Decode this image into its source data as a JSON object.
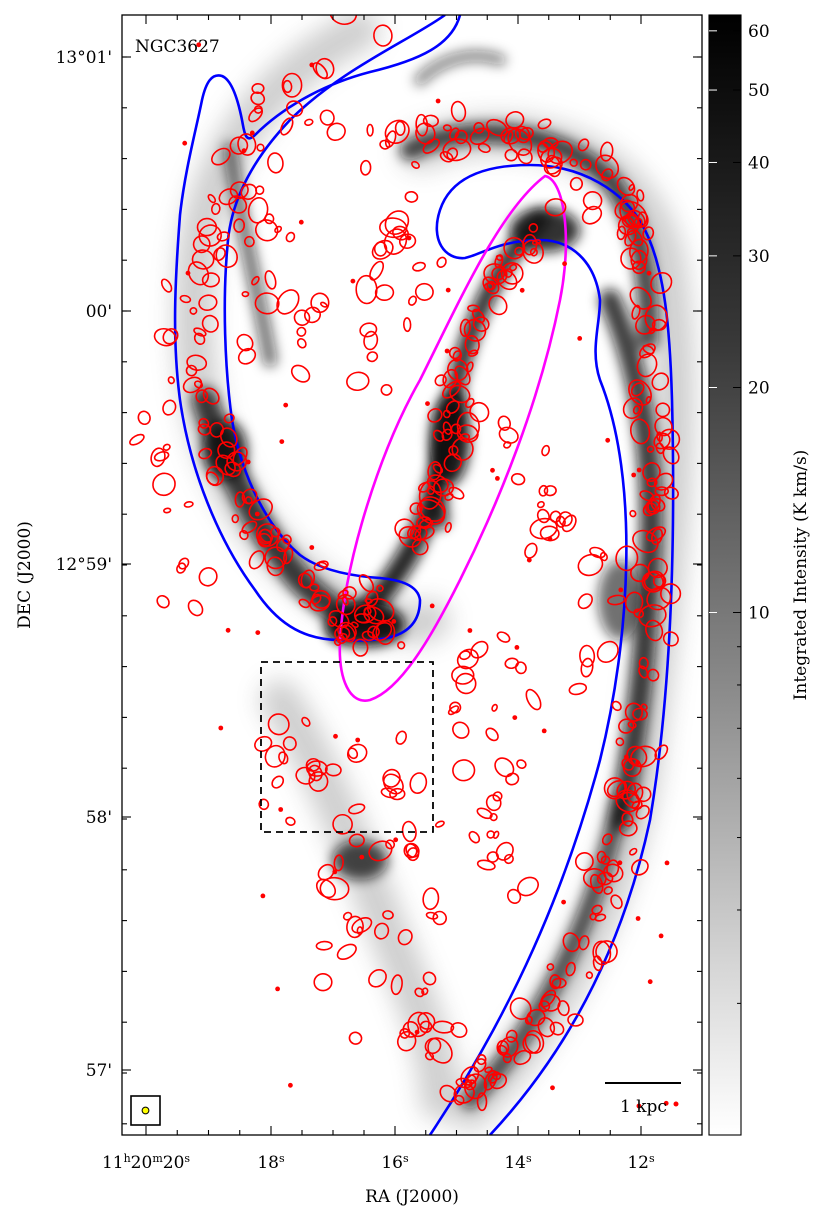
{
  "chart_data": {
    "type": "heatmap",
    "title": "",
    "galaxy_label": "NGC3627",
    "xlabel": "RA (J2000)",
    "ylabel": "DEC (J2000)",
    "colorbar": {
      "label": "Integrated Intensity (K km/s)",
      "scale": "log",
      "colormap": "greys",
      "ticks": [
        "60",
        "50",
        "40",
        "30",
        "20",
        "10"
      ],
      "tick_values": [
        60,
        50,
        40,
        30,
        20,
        10
      ],
      "range": [
        2,
        63
      ]
    },
    "x_ticks": [
      {
        "label": "11h20m20s",
        "h": "11",
        "m": "20",
        "s": "20"
      },
      {
        "label": "18s",
        "num": "18",
        "unit": "s"
      },
      {
        "label": "16s",
        "num": "16",
        "unit": "s"
      },
      {
        "label": "14s",
        "num": "14",
        "unit": "s"
      },
      {
        "label": "12s",
        "num": "12",
        "unit": "s"
      }
    ],
    "y_ticks": [
      {
        "label": "13°01'",
        "value": "13°01'"
      },
      {
        "label": "00'",
        "value": "00'"
      },
      {
        "label": "12°59'",
        "value": "12°59'"
      },
      {
        "label": "58'",
        "value": "58'"
      },
      {
        "label": "57'",
        "value": "57'"
      }
    ],
    "scale_bar_label": "1 kpc",
    "colors": {
      "clouds": "#ff0000",
      "arm_mask": "#0000ff",
      "bar_mask": "#ff00ff",
      "zoom_box": "#000000",
      "beam": "#ffff00"
    },
    "grid": false,
    "legend": "none"
  }
}
